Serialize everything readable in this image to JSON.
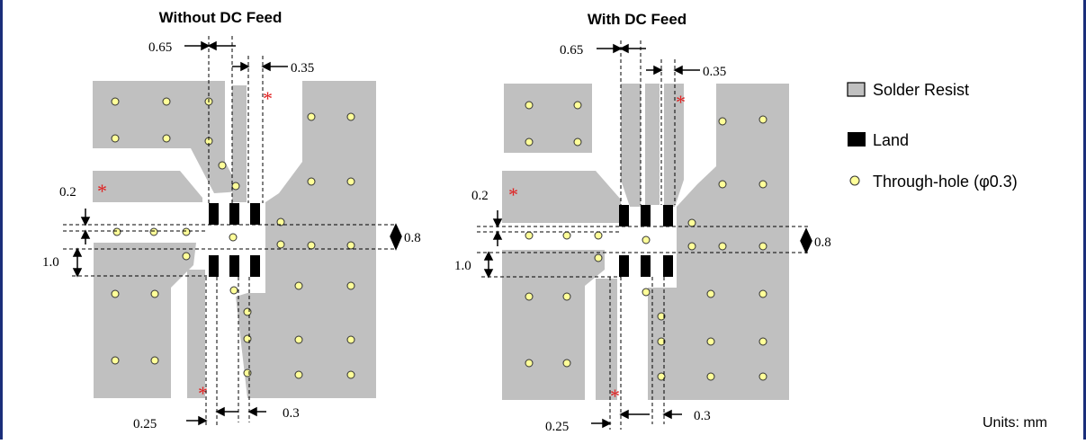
{
  "left_title": "Without DC Feed",
  "right_title": "With DC Feed",
  "dims": {
    "trace_gap": "0.65",
    "land_width": "0.35",
    "gap_small": "0.2",
    "pad_height": "0.8",
    "via_pitch": "1.0",
    "bottom_gap": "0.25",
    "bottom_trace": "0.3"
  },
  "legend": {
    "solder_resist": "Solder Resist",
    "land": "Land",
    "through_hole": "Through-hole (φ0.3)"
  },
  "units": "Units: mm",
  "colors": {
    "frame": "#1a2e7a",
    "resist": "#c0c0c0",
    "land": "#000000",
    "via_fill": "#ffff99",
    "asterisk": "#e02020"
  }
}
